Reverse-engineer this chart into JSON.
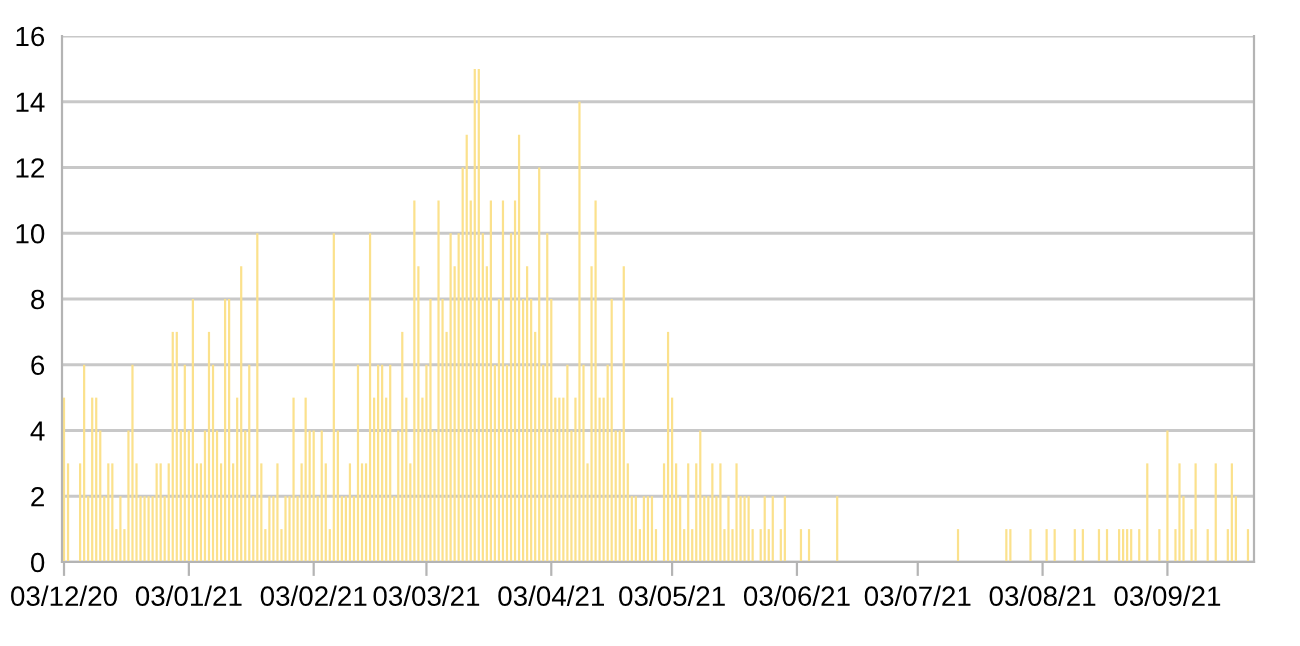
{
  "chart_data": {
    "type": "bar",
    "x": [
      "2020-12-03",
      "2020-12-04",
      "2020-12-05",
      "2020-12-06",
      "2020-12-07",
      "2020-12-08",
      "2020-12-09",
      "2020-12-10",
      "2020-12-11",
      "2020-12-12",
      "2020-12-13",
      "2020-12-14",
      "2020-12-15",
      "2020-12-16",
      "2020-12-17",
      "2020-12-18",
      "2020-12-19",
      "2020-12-20",
      "2020-12-21",
      "2020-12-22",
      "2020-12-23",
      "2020-12-24",
      "2020-12-25",
      "2020-12-26",
      "2020-12-27",
      "2020-12-28",
      "2020-12-29",
      "2020-12-30",
      "2020-12-31",
      "2021-01-01",
      "2021-01-02",
      "2021-01-03",
      "2021-01-04",
      "2021-01-05",
      "2021-01-06",
      "2021-01-07",
      "2021-01-08",
      "2021-01-09",
      "2021-01-10",
      "2021-01-11",
      "2021-01-12",
      "2021-01-13",
      "2021-01-14",
      "2021-01-15",
      "2021-01-16",
      "2021-01-17",
      "2021-01-18",
      "2021-01-19",
      "2021-01-20",
      "2021-01-21",
      "2021-01-22",
      "2021-01-23",
      "2021-01-24",
      "2021-01-25",
      "2021-01-26",
      "2021-01-27",
      "2021-01-28",
      "2021-01-29",
      "2021-01-30",
      "2021-01-31",
      "2021-02-01",
      "2021-02-02",
      "2021-02-03",
      "2021-02-04",
      "2021-02-05",
      "2021-02-06",
      "2021-02-07",
      "2021-02-08",
      "2021-02-09",
      "2021-02-10",
      "2021-02-11",
      "2021-02-12",
      "2021-02-13",
      "2021-02-14",
      "2021-02-15",
      "2021-02-16",
      "2021-02-17",
      "2021-02-18",
      "2021-02-19",
      "2021-02-20",
      "2021-02-21",
      "2021-02-22",
      "2021-02-23",
      "2021-02-24",
      "2021-02-25",
      "2021-02-26",
      "2021-02-27",
      "2021-02-28",
      "2021-03-01",
      "2021-03-02",
      "2021-03-03",
      "2021-03-04",
      "2021-03-05",
      "2021-03-06",
      "2021-03-07",
      "2021-03-08",
      "2021-03-09",
      "2021-03-10",
      "2021-03-11",
      "2021-03-12",
      "2021-03-13",
      "2021-03-14",
      "2021-03-15",
      "2021-03-16",
      "2021-03-17",
      "2021-03-18",
      "2021-03-19",
      "2021-03-20",
      "2021-03-21",
      "2021-03-22",
      "2021-03-23",
      "2021-03-24",
      "2021-03-25",
      "2021-03-26",
      "2021-03-27",
      "2021-03-28",
      "2021-03-29",
      "2021-03-30",
      "2021-03-31",
      "2021-04-01",
      "2021-04-02",
      "2021-04-03",
      "2021-04-04",
      "2021-04-05",
      "2021-04-06",
      "2021-04-07",
      "2021-04-08",
      "2021-04-09",
      "2021-04-10",
      "2021-04-11",
      "2021-04-12",
      "2021-04-13",
      "2021-04-14",
      "2021-04-15",
      "2021-04-16",
      "2021-04-17",
      "2021-04-18",
      "2021-04-19",
      "2021-04-20",
      "2021-04-21",
      "2021-04-22",
      "2021-04-23",
      "2021-04-24",
      "2021-04-25",
      "2021-04-26",
      "2021-04-27",
      "2021-04-28",
      "2021-04-29",
      "2021-04-30",
      "2021-05-01",
      "2021-05-02",
      "2021-05-03",
      "2021-05-04",
      "2021-05-05",
      "2021-05-06",
      "2021-05-07",
      "2021-05-08",
      "2021-05-09",
      "2021-05-10",
      "2021-05-11",
      "2021-05-12",
      "2021-05-13",
      "2021-05-14",
      "2021-05-15",
      "2021-05-16",
      "2021-05-17",
      "2021-05-18",
      "2021-05-19",
      "2021-05-20",
      "2021-05-21",
      "2021-05-22",
      "2021-05-23",
      "2021-05-24",
      "2021-05-25",
      "2021-05-26",
      "2021-05-27",
      "2021-05-28",
      "2021-05-29",
      "2021-05-30",
      "2021-05-31",
      "2021-06-01",
      "2021-06-02",
      "2021-06-03",
      "2021-06-04",
      "2021-06-05",
      "2021-06-06",
      "2021-06-07",
      "2021-06-08",
      "2021-06-09",
      "2021-06-10",
      "2021-06-11",
      "2021-06-12",
      "2021-06-13",
      "2021-06-14",
      "2021-06-15",
      "2021-06-16",
      "2021-06-17",
      "2021-06-18",
      "2021-06-19",
      "2021-06-20",
      "2021-06-21",
      "2021-06-22",
      "2021-06-23",
      "2021-06-24",
      "2021-06-25",
      "2021-06-26",
      "2021-06-27",
      "2021-06-28",
      "2021-06-29",
      "2021-06-30",
      "2021-07-01",
      "2021-07-02",
      "2021-07-03",
      "2021-07-04",
      "2021-07-05",
      "2021-07-06",
      "2021-07-07",
      "2021-07-08",
      "2021-07-09",
      "2021-07-10",
      "2021-07-11",
      "2021-07-12",
      "2021-07-13",
      "2021-07-14",
      "2021-07-15",
      "2021-07-16",
      "2021-07-17",
      "2021-07-18",
      "2021-07-19",
      "2021-07-20",
      "2021-07-21",
      "2021-07-22",
      "2021-07-23",
      "2021-07-24",
      "2021-07-25",
      "2021-07-26",
      "2021-07-27",
      "2021-07-28",
      "2021-07-29",
      "2021-07-30",
      "2021-07-31",
      "2021-08-01",
      "2021-08-02",
      "2021-08-03",
      "2021-08-04",
      "2021-08-05",
      "2021-08-06",
      "2021-08-07",
      "2021-08-08",
      "2021-08-09",
      "2021-08-10",
      "2021-08-11",
      "2021-08-12",
      "2021-08-13",
      "2021-08-14",
      "2021-08-15",
      "2021-08-16",
      "2021-08-17",
      "2021-08-18",
      "2021-08-19",
      "2021-08-20",
      "2021-08-21",
      "2021-08-22",
      "2021-08-23",
      "2021-08-24",
      "2021-08-25",
      "2021-08-26",
      "2021-08-27",
      "2021-08-28",
      "2021-08-29",
      "2021-08-30",
      "2021-08-31",
      "2021-09-01",
      "2021-09-02",
      "2021-09-03",
      "2021-09-04",
      "2021-09-05",
      "2021-09-06",
      "2021-09-07",
      "2021-09-08",
      "2021-09-09",
      "2021-09-10",
      "2021-09-11",
      "2021-09-12",
      "2021-09-13",
      "2021-09-14",
      "2021-09-15",
      "2021-09-16",
      "2021-09-17",
      "2021-09-18",
      "2021-09-19",
      "2021-09-20",
      "2021-09-21",
      "2021-09-22",
      "2021-09-23",
      "2021-09-24"
    ],
    "values": [
      5,
      3,
      0,
      0,
      3,
      6,
      2,
      5,
      5,
      4,
      2,
      3,
      3,
      1,
      2,
      1,
      4,
      6,
      3,
      2,
      2,
      2,
      2,
      3,
      3,
      2,
      3,
      7,
      7,
      4,
      6,
      4,
      8,
      3,
      3,
      4,
      7,
      6,
      4,
      3,
      8,
      8,
      3,
      5,
      9,
      4,
      6,
      2,
      10,
      3,
      1,
      2,
      2,
      3,
      1,
      2,
      2,
      5,
      2,
      3,
      5,
      4,
      4,
      2,
      4,
      3,
      1,
      10,
      4,
      2,
      2,
      3,
      2,
      6,
      3,
      3,
      10,
      5,
      6,
      6,
      5,
      6,
      2,
      4,
      7,
      5,
      3,
      11,
      9,
      5,
      6,
      8,
      4,
      11,
      8,
      7,
      10,
      9,
      10,
      12,
      13,
      11,
      15,
      15,
      10,
      9,
      11,
      6,
      8,
      11,
      6,
      10,
      11,
      13,
      8,
      9,
      8,
      7,
      12,
      6,
      10,
      8,
      5,
      5,
      5,
      6,
      4,
      5,
      14,
      6,
      3,
      9,
      11,
      5,
      5,
      6,
      8,
      4,
      4,
      9,
      3,
      2,
      2,
      1,
      2,
      2,
      2,
      1,
      0,
      3,
      7,
      5,
      3,
      2,
      1,
      3,
      1,
      3,
      4,
      2,
      2,
      3,
      2,
      3,
      1,
      2,
      1,
      3,
      2,
      2,
      2,
      1,
      0,
      1,
      2,
      1,
      2,
      0,
      1,
      2,
      0,
      0,
      0,
      1,
      0,
      1,
      0,
      0,
      0,
      0,
      0,
      0,
      2,
      0,
      0,
      0,
      0,
      0,
      0,
      0,
      0,
      0,
      0,
      0,
      0,
      0,
      0,
      0,
      0,
      0,
      0,
      0,
      0,
      0,
      0,
      0,
      0,
      0,
      0,
      0,
      0,
      0,
      1,
      0,
      0,
      0,
      0,
      0,
      0,
      0,
      0,
      0,
      0,
      0,
      1,
      1,
      0,
      0,
      0,
      0,
      1,
      0,
      0,
      0,
      1,
      0,
      1,
      0,
      0,
      0,
      0,
      1,
      0,
      1,
      0,
      0,
      0,
      1,
      0,
      1,
      0,
      0,
      1,
      1,
      1,
      1,
      0,
      1,
      0,
      3,
      0,
      0,
      1,
      0,
      4,
      0,
      1,
      3,
      2,
      0,
      1,
      3,
      0,
      0,
      1,
      0,
      3,
      0,
      0,
      1,
      3,
      2,
      0,
      0,
      1,
      0
    ],
    "color": "#fbe18c",
    "xlim": [
      "2020-12-02T12:00",
      "2021-09-24T12:00"
    ],
    "xticks": [
      {
        "value": "2020-12-03",
        "label": "03/12/20"
      },
      {
        "value": "2021-01-03",
        "label": "03/01/21"
      },
      {
        "value": "2021-02-03",
        "label": "03/02/21"
      },
      {
        "value": "2021-03-03",
        "label": "03/03/21"
      },
      {
        "value": "2021-04-03",
        "label": "03/04/21"
      },
      {
        "value": "2021-05-03",
        "label": "03/05/21"
      },
      {
        "value": "2021-06-03",
        "label": "03/06/21"
      },
      {
        "value": "2021-07-03",
        "label": "03/07/21"
      },
      {
        "value": "2021-08-03",
        "label": "03/08/21"
      },
      {
        "value": "2021-09-03",
        "label": "03/09/21"
      }
    ],
    "ylim": [
      0,
      16
    ],
    "yticks": [
      0,
      2,
      4,
      6,
      8,
      10,
      12,
      14,
      16
    ],
    "grid": "y",
    "legend": false
  }
}
